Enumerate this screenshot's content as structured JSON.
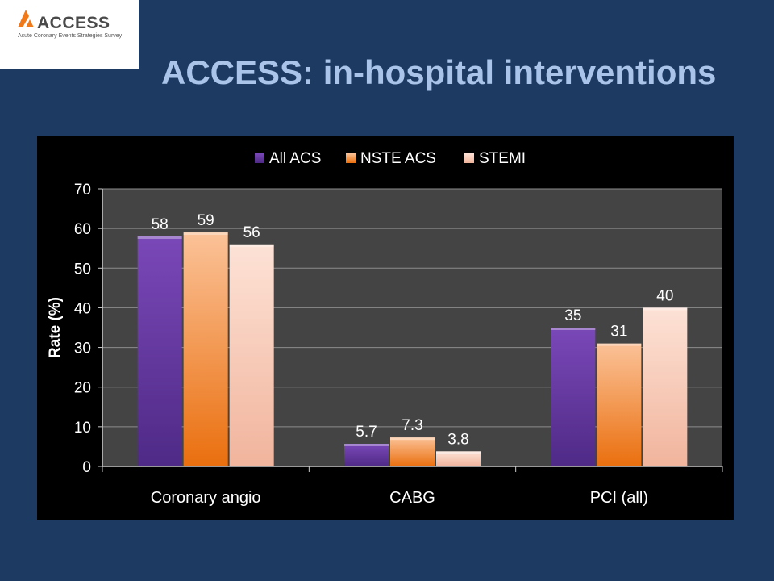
{
  "logo": {
    "name": "ACCESS",
    "tagline": "Acute Coronary Events Strategies Survey",
    "icon": "access-logo-mark"
  },
  "title": "ACCESS: in-hospital interventions",
  "colors": {
    "background": "#1d3a63",
    "title": "#a9c4e8",
    "plot_area": "#444444",
    "series": [
      "#6a3aa6",
      "#f08a22",
      "#f7cbb6"
    ]
  },
  "chart_data": {
    "type": "bar",
    "categories": [
      "Coronary angio",
      "CABG",
      "PCI (all)"
    ],
    "series": [
      {
        "name": "All ACS",
        "values": [
          58,
          5.7,
          35
        ]
      },
      {
        "name": "NSTE ACS",
        "values": [
          59,
          7.3,
          31
        ]
      },
      {
        "name": "STEMI",
        "values": [
          56,
          3.8,
          40
        ]
      }
    ],
    "value_labels": [
      [
        "58",
        "5.7",
        "35"
      ],
      [
        "59",
        "7.3",
        "31"
      ],
      [
        "56",
        "3.8",
        "40"
      ]
    ],
    "xlabel": "",
    "ylabel": "Rate (%)",
    "ylim": [
      0,
      70
    ],
    "yticks": [
      0,
      10,
      20,
      30,
      40,
      50,
      60,
      70
    ],
    "grid": true,
    "legend_position": "top"
  }
}
